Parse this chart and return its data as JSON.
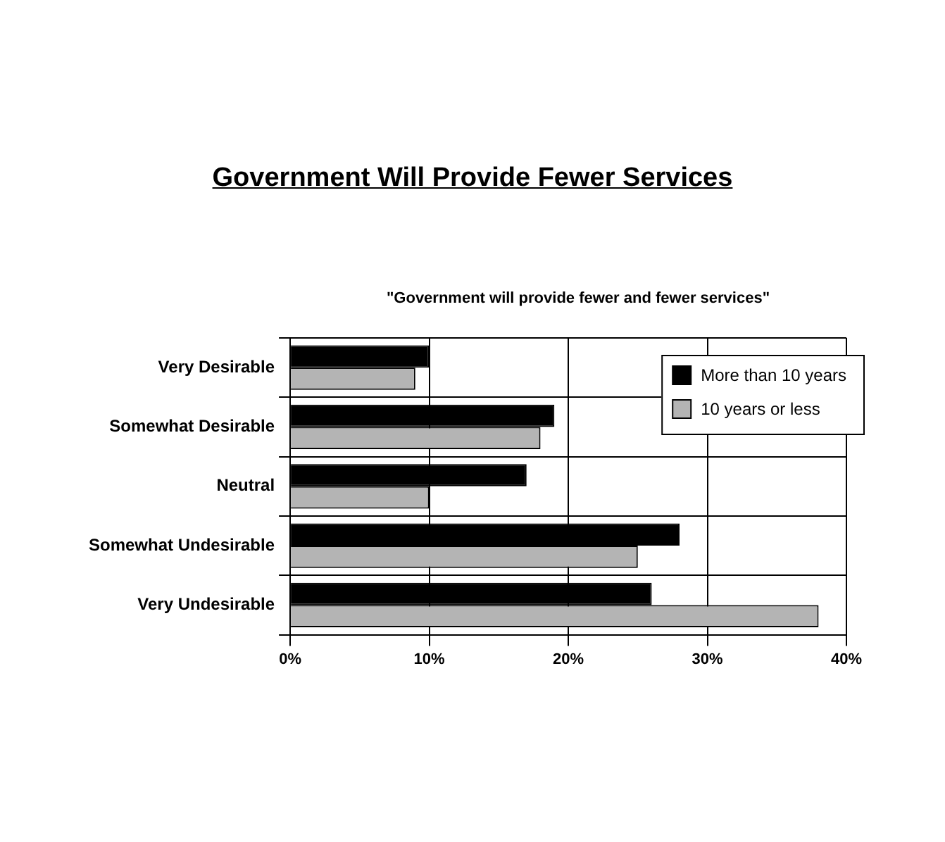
{
  "chart_data": {
    "type": "bar",
    "orientation": "horizontal",
    "title": "Government Will Provide Fewer Services",
    "subtitle": "\"Government will provide fewer and fewer services\"",
    "categories": [
      "Very Desirable",
      "Somewhat Desirable",
      "Neutral",
      "Somewhat Undesirable",
      "Very Undesirable"
    ],
    "series": [
      {
        "name": "More than 10 years",
        "color": "#000000",
        "values": [
          10,
          19,
          17,
          28,
          26
        ]
      },
      {
        "name": "10 years or less",
        "color": "#b4b4b4",
        "values": [
          9,
          18,
          10,
          25,
          38
        ]
      }
    ],
    "xlim": [
      0,
      40
    ],
    "xticks": [
      {
        "value": 0,
        "label": "0%"
      },
      {
        "value": 10,
        "label": "10%"
      },
      {
        "value": 20,
        "label": "20%"
      },
      {
        "value": 30,
        "label": "30%"
      },
      {
        "value": 40,
        "label": "40%"
      }
    ],
    "grid": true,
    "legend": "top right"
  }
}
